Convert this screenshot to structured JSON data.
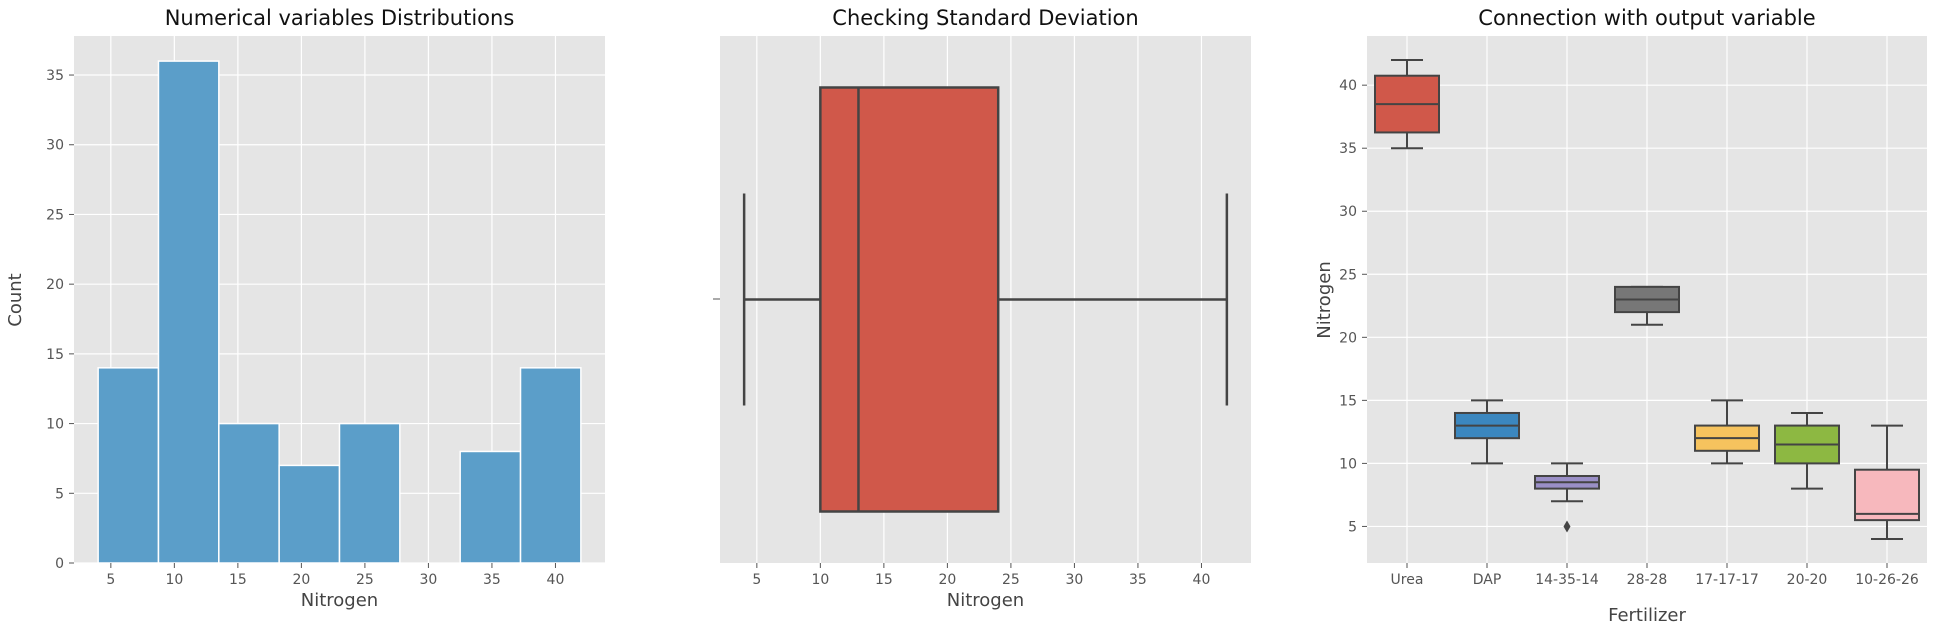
{
  "chart_data": [
    {
      "type": "bar",
      "title": "Numerical variables Distributions",
      "xlabel": "Nitrogen",
      "ylabel": "Count",
      "xlim": [
        2.1,
        43.9
      ],
      "ylim": [
        0,
        37.8
      ],
      "xticks": [
        5,
        10,
        15,
        20,
        25,
        30,
        35,
        40
      ],
      "yticks": [
        0,
        5,
        10,
        15,
        20,
        25,
        30,
        35
      ],
      "bin_edges": [
        4,
        8.75,
        13.5,
        18.25,
        23,
        27.75,
        32.5,
        37.25,
        42
      ],
      "values": [
        14,
        36,
        10,
        7,
        10,
        0,
        8,
        14
      ],
      "color": "#5b9ec9",
      "grid": true
    },
    {
      "type": "box",
      "orientation": "horizontal",
      "title": "Checking Standard Deviation",
      "xlabel": "Nitrogen",
      "ylabel": "",
      "xlim": [
        2.1,
        43.9
      ],
      "xticks": [
        5,
        10,
        15,
        20,
        25,
        30,
        35,
        40
      ],
      "box": {
        "whislo": 4,
        "q1": 10,
        "med": 13,
        "q3": 24,
        "whishi": 42
      },
      "color": "#d0584a",
      "grid": true
    },
    {
      "type": "box",
      "orientation": "vertical",
      "title": "Connection with output variable",
      "xlabel": "Fertilizer",
      "ylabel": "Nitrogen",
      "ylim": [
        2.1,
        43.9
      ],
      "yticks": [
        5,
        10,
        15,
        20,
        25,
        30,
        35,
        40
      ],
      "categories": [
        "Urea",
        "DAP",
        "14-35-14",
        "28-28",
        "17-17-17",
        "20-20",
        "10-26-26"
      ],
      "boxes": [
        {
          "whislo": 35,
          "q1": 36.25,
          "med": 38.5,
          "q3": 40.75,
          "whishi": 42,
          "fliers": [],
          "color": "#d0584a"
        },
        {
          "whislo": 10,
          "q1": 12,
          "med": 13,
          "q3": 14,
          "whishi": 15,
          "fliers": [],
          "color": "#3b87bf"
        },
        {
          "whislo": 7,
          "q1": 8,
          "med": 8.5,
          "q3": 9,
          "whishi": 10,
          "fliers": [
            5
          ],
          "color": "#9a8fc7"
        },
        {
          "whislo": 21,
          "q1": 22,
          "med": 23,
          "q3": 24,
          "whishi": 24,
          "fliers": [],
          "color": "#777777"
        },
        {
          "whislo": 10,
          "q1": 11,
          "med": 12,
          "q3": 13,
          "whishi": 15,
          "fliers": [],
          "color": "#f6c35e"
        },
        {
          "whislo": 8,
          "q1": 10,
          "med": 11.5,
          "q3": 13,
          "whishi": 14,
          "fliers": [],
          "color": "#8db842"
        },
        {
          "whislo": 4,
          "q1": 5.5,
          "med": 6,
          "q3": 9.5,
          "whishi": 13,
          "fliers": [],
          "color": "#f7b8bd"
        }
      ],
      "grid": true
    }
  ]
}
